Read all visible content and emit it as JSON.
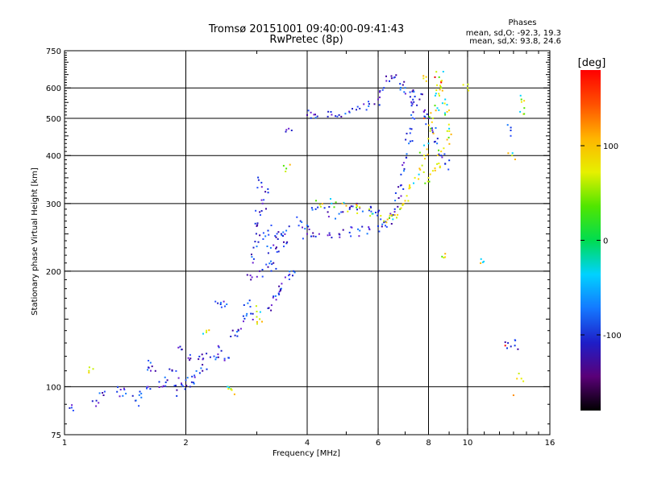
{
  "chart_data": {
    "type": "scatter",
    "title": "Tromsø 20151001 09:40:00-09:41:43",
    "subtitle": "RwPretec (8p)",
    "xlabel": "Frequency [MHz]",
    "ylabel": "Stationary phase Virtual Height [km]",
    "x_scale": "log",
    "y_scale": "log",
    "xlim": [
      1,
      16
    ],
    "ylim": [
      75,
      750
    ],
    "x_ticks": [
      1,
      2,
      4,
      6,
      8,
      10,
      16
    ],
    "y_ticks": [
      75,
      100,
      200,
      300,
      400,
      500,
      600,
      750
    ],
    "x_gridlines": [
      2,
      4,
      6,
      8,
      10
    ],
    "y_gridlines": [
      100,
      200,
      300,
      400,
      500,
      600
    ],
    "grid": true,
    "phase_stats": {
      "heading": "Phases",
      "line_o": "mean, sd,O: -92.3, 19.3",
      "line_x": "mean, sd,X:  93.8, 24.6"
    },
    "colorbar": {
      "label": "[deg]",
      "ticks": [
        "100",
        "0",
        "-100"
      ],
      "tick_values": [
        100,
        0,
        -100
      ],
      "range": [
        -180,
        180
      ],
      "stops": [
        "#000000",
        "#5a0078",
        "#1e1ec8",
        "#1478ff",
        "#00d2ff",
        "#00dc50",
        "#50e600",
        "#e6f000",
        "#ffb400",
        "#ff5000",
        "#ff0000"
      ]
    },
    "series": [
      {
        "component": "O-mode trace (blue/purple)",
        "points": [
          [
            1.03,
            88
          ],
          [
            1.25,
            95
          ],
          [
            1.35,
            97
          ],
          [
            1.42,
            96
          ],
          [
            1.5,
            92
          ],
          [
            1.55,
            96
          ],
          [
            1.6,
            99
          ],
          [
            1.62,
            112
          ],
          [
            1.65,
            113
          ],
          [
            1.75,
            100
          ],
          [
            1.8,
            104
          ],
          [
            1.9,
            98
          ],
          [
            1.95,
            102
          ],
          [
            2.0,
            104
          ],
          [
            2.05,
            100
          ],
          [
            2.1,
            107
          ],
          [
            2.2,
            110
          ],
          [
            1.85,
            110
          ],
          [
            1.95,
            125
          ],
          [
            2.05,
            121
          ],
          [
            2.15,
            118
          ],
          [
            2.25,
            122
          ],
          [
            2.35,
            120
          ],
          [
            2.45,
            124
          ],
          [
            2.55,
            119
          ],
          [
            2.65,
            136
          ],
          [
            2.7,
            140
          ],
          [
            2.78,
            148
          ],
          [
            2.85,
            165
          ],
          [
            2.9,
            190
          ],
          [
            2.95,
            215
          ],
          [
            3.0,
            232
          ],
          [
            3.05,
            248
          ],
          [
            3.0,
            262
          ],
          [
            3.05,
            285
          ],
          [
            3.1,
            300
          ],
          [
            3.15,
            322
          ],
          [
            3.08,
            340
          ],
          [
            3.2,
            255
          ],
          [
            3.25,
            230
          ],
          [
            3.35,
            245
          ],
          [
            3.45,
            250
          ],
          [
            3.55,
            255
          ],
          [
            3.3,
            210
          ],
          [
            3.4,
            225
          ],
          [
            3.5,
            232
          ],
          [
            3.2,
            205
          ],
          [
            3.05,
            200
          ],
          [
            3.3,
            172
          ],
          [
            3.45,
            180
          ],
          [
            3.6,
            195
          ],
          [
            3.7,
            200
          ],
          [
            3.85,
            270
          ],
          [
            3.95,
            258
          ],
          [
            4.0,
            250
          ],
          [
            4.2,
            246
          ],
          [
            4.5,
            248
          ],
          [
            4.8,
            250
          ],
          [
            5.1,
            252
          ],
          [
            5.4,
            255
          ],
          [
            5.7,
            258
          ],
          [
            6.0,
            262
          ],
          [
            6.2,
            268
          ],
          [
            6.4,
            275
          ],
          [
            6.6,
            290
          ],
          [
            6.75,
            310
          ],
          [
            6.85,
            335
          ],
          [
            6.95,
            365
          ],
          [
            7.05,
            395
          ],
          [
            7.15,
            430
          ],
          [
            7.2,
            470
          ],
          [
            7.25,
            510
          ],
          [
            7.3,
            545
          ],
          [
            4.0,
            510
          ],
          [
            4.2,
            502
          ],
          [
            4.5,
            505
          ],
          [
            4.8,
            510
          ],
          [
            5.1,
            518
          ],
          [
            5.4,
            530
          ],
          [
            5.7,
            545
          ],
          [
            6.0,
            560
          ],
          [
            6.2,
            600
          ],
          [
            6.4,
            625
          ],
          [
            6.6,
            640
          ],
          [
            6.8,
            615
          ],
          [
            7.0,
            600
          ],
          [
            7.2,
            585
          ],
          [
            7.4,
            570
          ],
          [
            7.6,
            560
          ],
          [
            7.8,
            520
          ],
          [
            8.0,
            500
          ],
          [
            8.2,
            460
          ],
          [
            8.4,
            430
          ],
          [
            8.6,
            400
          ],
          [
            8.8,
            380
          ],
          [
            3.6,
            470
          ],
          [
            4.2,
            290
          ],
          [
            4.5,
            285
          ],
          [
            4.8,
            282
          ],
          [
            5.1,
            290
          ],
          [
            5.4,
            292
          ],
          [
            5.7,
            288
          ],
          [
            6.0,
            285
          ],
          [
            2.4,
            165
          ],
          [
            2.5,
            162
          ],
          [
            2.9,
            155
          ],
          [
            3.2,
            160
          ],
          [
            3.4,
            175
          ],
          [
            1.2,
            92
          ],
          [
            12.6,
            130
          ],
          [
            13.1,
            128
          ],
          [
            12.8,
            465
          ]
        ]
      },
      {
        "component": "X-mode trace (yellow/green)",
        "points": [
          [
            1.15,
            110
          ],
          [
            2.25,
            140
          ],
          [
            2.55,
            100
          ],
          [
            2.6,
            98
          ],
          [
            3.0,
            157
          ],
          [
            3.05,
            150
          ],
          [
            3.55,
            370
          ],
          [
            4.3,
            298
          ],
          [
            4.6,
            300
          ],
          [
            5.0,
            296
          ],
          [
            5.3,
            293
          ],
          [
            5.8,
            282
          ],
          [
            6.2,
            270
          ],
          [
            6.4,
            275
          ],
          [
            6.6,
            280
          ],
          [
            6.8,
            290
          ],
          [
            7.0,
            305
          ],
          [
            7.2,
            330
          ],
          [
            7.4,
            350
          ],
          [
            7.6,
            370
          ],
          [
            7.8,
            400
          ],
          [
            8.0,
            430
          ],
          [
            8.1,
            470
          ],
          [
            8.2,
            500
          ],
          [
            8.3,
            540
          ],
          [
            8.35,
            580
          ],
          [
            8.4,
            610
          ],
          [
            8.5,
            640
          ],
          [
            8.6,
            600
          ],
          [
            8.8,
            560
          ],
          [
            8.9,
            520
          ],
          [
            8.0,
            350
          ],
          [
            8.2,
            365
          ],
          [
            8.4,
            380
          ],
          [
            8.6,
            410
          ],
          [
            8.9,
            440
          ],
          [
            9.0,
            470
          ],
          [
            7.9,
            625
          ],
          [
            8.8,
            222
          ],
          [
            10.0,
            600
          ],
          [
            10.8,
            215
          ],
          [
            12.9,
            400
          ],
          [
            13.5,
            520
          ],
          [
            13.6,
            105
          ],
          [
            13.6,
            560
          ]
        ]
      },
      {
        "component": "scattered points (red/orange)",
        "points": [
          [
            8.3,
            640
          ],
          [
            7.8,
            500
          ],
          [
            8.6,
            620
          ],
          [
            12.4,
            128
          ],
          [
            13.0,
            95
          ],
          [
            5.3,
            298
          ]
        ]
      }
    ]
  }
}
